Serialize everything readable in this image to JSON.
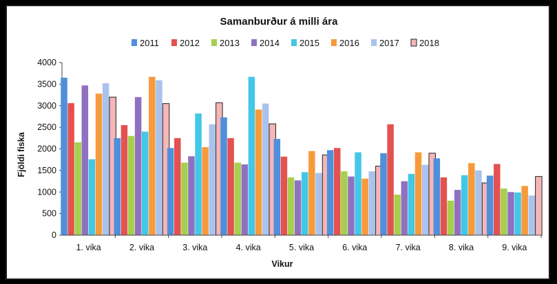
{
  "chart_data": {
    "type": "bar",
    "title": "Samanburður á milli ára",
    "xlabel": "Vikur",
    "ylabel": "Fjöldi fiska",
    "ylim": [
      0,
      4000
    ],
    "yticks": [
      0,
      500,
      1000,
      1500,
      2000,
      2500,
      3000,
      3500,
      4000
    ],
    "grid": false,
    "legend_position": "top",
    "categories": [
      "1. vika",
      "2. vika",
      "3. vika",
      "4. vika",
      "5. vika",
      "6. vika",
      "7. vika",
      "8. vika",
      "9. vika"
    ],
    "series": [
      {
        "name": "2011",
        "color": "#4f8fdc",
        "values": [
          3650,
          2250,
          2020,
          2730,
          2230,
          1970,
          1900,
          1780,
          1380
        ]
      },
      {
        "name": "2012",
        "color": "#e35250",
        "values": [
          3060,
          2550,
          2250,
          2250,
          1820,
          2020,
          2570,
          1340,
          1650
        ]
      },
      {
        "name": "2013",
        "color": "#a6cf4e",
        "values": [
          2150,
          2300,
          1680,
          1680,
          1340,
          1480,
          940,
          800,
          1080
        ]
      },
      {
        "name": "2014",
        "color": "#9071c0",
        "values": [
          3470,
          3200,
          1830,
          1640,
          1270,
          1360,
          1250,
          1050,
          1000
        ]
      },
      {
        "name": "2015",
        "color": "#43c7e7",
        "values": [
          1760,
          2400,
          2820,
          3670,
          1460,
          1920,
          1420,
          1390,
          990
        ]
      },
      {
        "name": "2016",
        "color": "#f79a3c",
        "values": [
          3280,
          3670,
          2040,
          2910,
          1950,
          1310,
          1920,
          1670,
          1140
        ]
      },
      {
        "name": "2017",
        "color": "#a9c3ec",
        "values": [
          3520,
          3590,
          2570,
          3050,
          1440,
          1480,
          1630,
          1500,
          920
        ]
      },
      {
        "name": "2018",
        "color": "#f4b6b6",
        "values": [
          3200,
          3050,
          3070,
          2580,
          1860,
          1600,
          1900,
          1210,
          1360
        ]
      }
    ]
  }
}
